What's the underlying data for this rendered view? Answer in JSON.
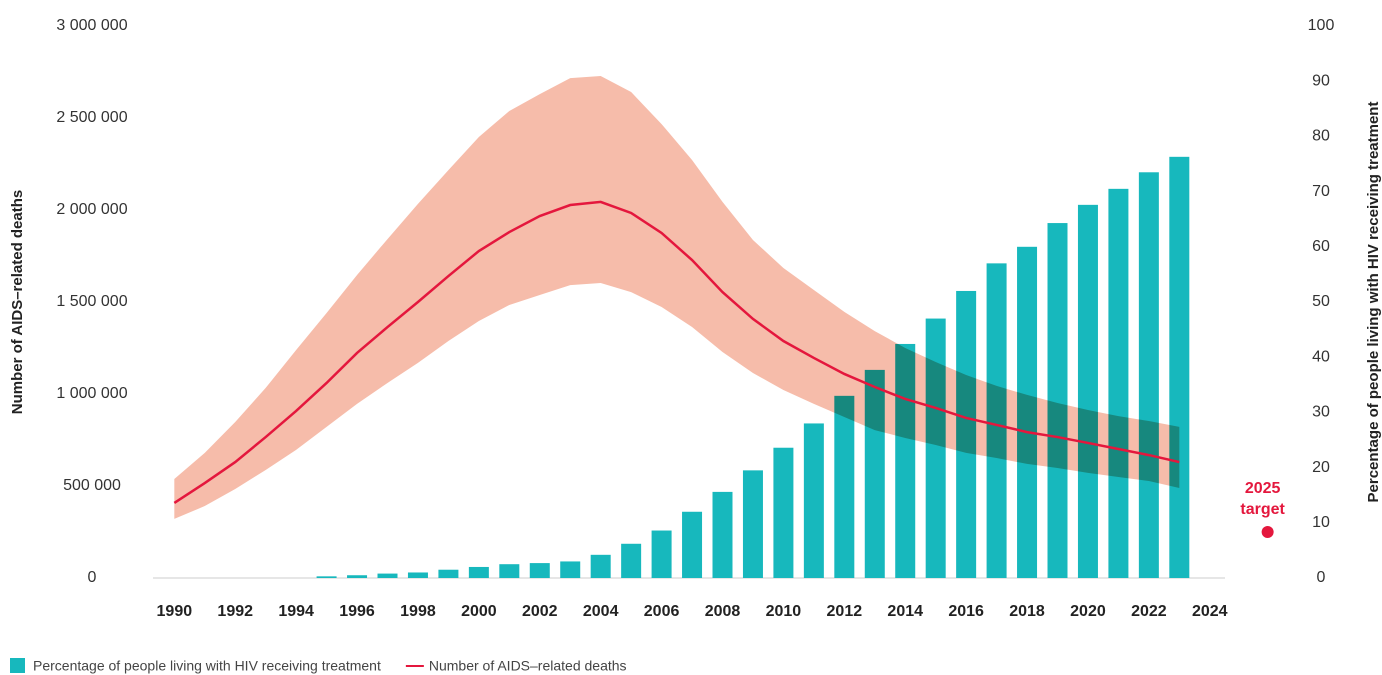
{
  "chart_data": {
    "type": "bar-line",
    "x": [
      1990,
      1991,
      1992,
      1993,
      1994,
      1995,
      1996,
      1997,
      1998,
      1999,
      2000,
      2001,
      2002,
      2003,
      2004,
      2005,
      2006,
      2007,
      2008,
      2009,
      2010,
      2011,
      2012,
      2013,
      2014,
      2015,
      2016,
      2017,
      2018,
      2019,
      2020,
      2021,
      2022,
      2023
    ],
    "series": [
      {
        "name": "Percentage of people living with HIV receiving treatment",
        "type": "bar",
        "axis": "y2",
        "color": "#17b8bd",
        "values": [
          0,
          0,
          0,
          0,
          0,
          0.3,
          0.5,
          0.8,
          1,
          1.5,
          2,
          2.5,
          2.7,
          3,
          4.2,
          6.2,
          8.6,
          12,
          15.6,
          19.5,
          23.6,
          28,
          33,
          37.7,
          42.4,
          47,
          52,
          57,
          60,
          64.3,
          67.6,
          70.5,
          73.5,
          76.3
        ]
      },
      {
        "name": "Number of AIDS–related deaths",
        "type": "line",
        "axis": "y",
        "color": "#e4173d",
        "band_color": "#f6bcaa",
        "values": [
          408000,
          516000,
          630000,
          766000,
          908000,
          1060000,
          1223000,
          1364000,
          1500000,
          1641000,
          1777000,
          1880000,
          1967000,
          2027000,
          2044000,
          1984000,
          1875000,
          1728000,
          1554000,
          1408000,
          1288000,
          1196000,
          1109000,
          1038000,
          973000,
          924000,
          870000,
          832000,
          793000,
          766000,
          734000,
          701000,
          668000,
          630000
        ],
        "upper": [
          538000,
          680000,
          848000,
          1033000,
          1239000,
          1440000,
          1647000,
          1842000,
          2033000,
          2217000,
          2397000,
          2538000,
          2630000,
          2717000,
          2728000,
          2641000,
          2467000,
          2272000,
          2044000,
          1837000,
          1685000,
          1565000,
          1446000,
          1342000,
          1250000,
          1174000,
          1103000,
          1044000,
          995000,
          951000,
          913000,
          880000,
          853000,
          821000
        ],
        "lower": [
          321000,
          391000,
          484000,
          587000,
          696000,
          821000,
          946000,
          1060000,
          1169000,
          1288000,
          1397000,
          1484000,
          1538000,
          1592000,
          1603000,
          1554000,
          1473000,
          1364000,
          1228000,
          1114000,
          1022000,
          946000,
          875000,
          804000,
          761000,
          723000,
          680000,
          652000,
          620000,
          598000,
          571000,
          549000,
          527000,
          489000
        ]
      }
    ],
    "target": {
      "text": [
        "2025",
        "target"
      ],
      "x": 2025.9,
      "value": 250000,
      "color": "#e4173d"
    },
    "xlim": [
      1989.3,
      2024.5
    ],
    "xticks": [
      1990,
      1992,
      1994,
      1996,
      1998,
      2000,
      2002,
      2004,
      2006,
      2008,
      2010,
      2012,
      2014,
      2016,
      2018,
      2020,
      2022,
      2024
    ],
    "ylim": [
      0,
      3000000
    ],
    "yticks": [
      0,
      {
        "value": 500000,
        "label": "500 000"
      },
      {
        "value": 1000000,
        "label": "1 000 000"
      },
      {
        "value": 1500000,
        "label": "1 500 000"
      },
      {
        "value": 2000000,
        "label": "2 000 000"
      },
      {
        "value": 2500000,
        "label": "2 500 000"
      },
      {
        "value": 3000000,
        "label": "3 000 000"
      }
    ],
    "y2lim": [
      0,
      100
    ],
    "y2ticks": [
      0,
      10,
      20,
      30,
      40,
      50,
      60,
      70,
      80,
      90,
      100
    ],
    "ylabel": "Number of AIDS–related deaths",
    "y2label": "Percentage of people living with HIV receiving treatment",
    "legend": "bottom-left"
  }
}
